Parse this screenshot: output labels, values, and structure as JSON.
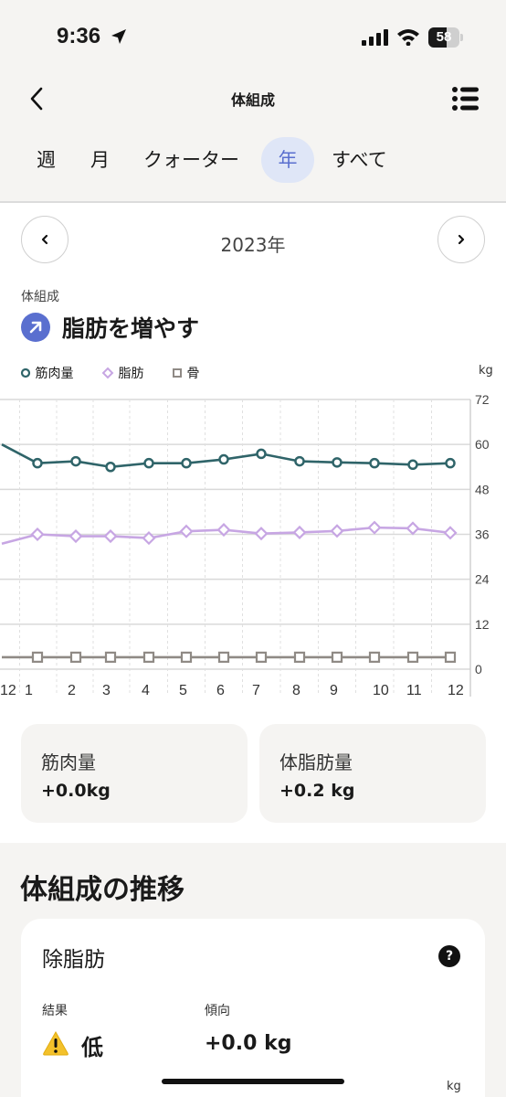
{
  "status_bar": {
    "time": "9:36",
    "battery": "58",
    "battery_level": 0.58
  },
  "nav": {
    "title": "体組成"
  },
  "tabs": [
    {
      "label": "週",
      "active": false
    },
    {
      "label": "月",
      "active": false
    },
    {
      "label": "クォーター",
      "active": false
    },
    {
      "label": "年",
      "active": true
    },
    {
      "label": "すべて",
      "active": false
    }
  ],
  "period": {
    "label": "2023年"
  },
  "section": {
    "label": "体組成",
    "goal": "脂肪を増やす"
  },
  "legend": {
    "muscle": "筋肉量",
    "fat": "脂肪",
    "bone": "骨",
    "unit": "kg"
  },
  "colors": {
    "muscle": "#2f6469",
    "fat": "#c7a6e3",
    "bone": "#8f8a85",
    "accent": "#5a6fcf",
    "tab_active_bg": "#dfe6f7"
  },
  "chart_data": {
    "type": "line",
    "x": [
      "12",
      "1",
      "2",
      "3",
      "4",
      "5",
      "6",
      "7",
      "8",
      "9",
      "10",
      "11",
      "12"
    ],
    "ylim": [
      0,
      72
    ],
    "yticks": [
      0,
      12,
      24,
      36,
      48,
      60,
      72
    ],
    "ylabel": "kg",
    "grid": true,
    "series": [
      {
        "name": "筋肉量",
        "values": [
          60,
          55,
          55.5,
          54,
          55,
          55,
          56,
          57.5,
          55.5,
          55.2,
          55,
          54.6,
          55
        ]
      },
      {
        "name": "脂肪",
        "values": [
          33.5,
          36,
          35.5,
          35.5,
          35,
          36.8,
          37.2,
          36.2,
          36.5,
          36.9,
          37.8,
          37.6,
          36.4
        ]
      },
      {
        "name": "骨",
        "values": [
          3.2,
          3.2,
          3.2,
          3.2,
          3.2,
          3.2,
          3.2,
          3.2,
          3.2,
          3.2,
          3.2,
          3.2,
          3.2
        ]
      }
    ]
  },
  "stats": {
    "muscle": {
      "label": "筋肉量",
      "value": "+0.0kg"
    },
    "body_fat": {
      "label": "体脂肪量",
      "value": "+0.2 kg"
    }
  },
  "trend": {
    "title": "体組成の推移",
    "card_title": "除脂肪",
    "help": "?",
    "result_label": "結果",
    "result_value": "低",
    "tendency_label": "傾向",
    "tendency_value": "+0.0 kg",
    "unit": "kg"
  }
}
